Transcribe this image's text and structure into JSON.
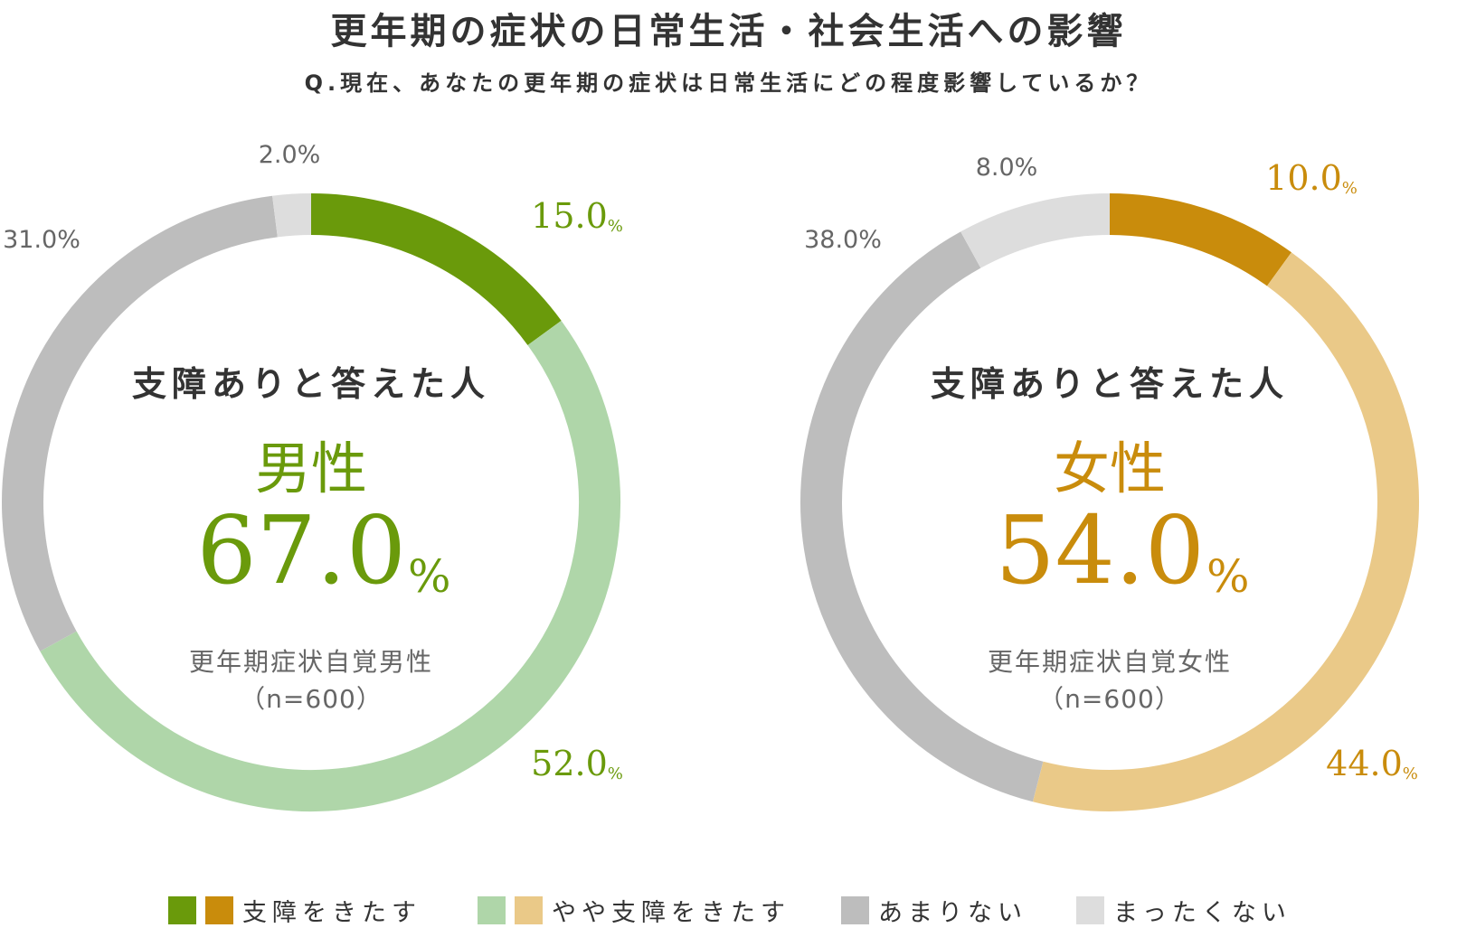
{
  "title": "更年期の症状の日常生活・社会生活への影響",
  "question": "Q.現在、あなたの更年期の症状は日常生活にどの程度影響しているか？",
  "colors": {
    "male_dark": "#6a9a0b",
    "male_light": "#afd6a9",
    "female_dark": "#c98c0c",
    "female_light": "#eac988",
    "gray": "#bdbdbd",
    "light_gray": "#dddddd",
    "text_gray": "#666666",
    "text_dark": "#333333"
  },
  "legend": [
    {
      "label": "支障をきたす",
      "colors": [
        "#6a9a0b",
        "#c98c0c"
      ]
    },
    {
      "label": "やや支障をきたす",
      "colors": [
        "#afd6a9",
        "#eac988"
      ]
    },
    {
      "label": "あまりない",
      "colors": [
        "#bdbdbd"
      ]
    },
    {
      "label": "まったくない",
      "colors": [
        "#dddddd"
      ]
    }
  ],
  "chart_data": [
    {
      "type": "pie",
      "style": "donut",
      "categories": [
        "支障をきたす",
        "やや支障をきたす",
        "あまりない",
        "まったくない"
      ],
      "values": [
        15.0,
        52.0,
        31.0,
        2.0
      ],
      "value_labels": [
        "15.0",
        "52.0",
        "31.0%",
        "2.0%"
      ],
      "label_suffix": [
        "%",
        "%",
        "",
        ""
      ],
      "colors": [
        "#6a9a0b",
        "#afd6a9",
        "#bdbdbd",
        "#dddddd"
      ],
      "center_heading": "支障ありと答えた人",
      "center_group": "男性",
      "center_value": "67.0",
      "center_unit": "%",
      "center_sub1": "更年期症状自覚男性",
      "center_sub2": "（n=600）",
      "accent": "#6a9a0b"
    },
    {
      "type": "pie",
      "style": "donut",
      "categories": [
        "支障をきたす",
        "やや支障をきたす",
        "あまりない",
        "まったくない"
      ],
      "values": [
        10.0,
        44.0,
        38.0,
        8.0
      ],
      "value_labels": [
        "10.0",
        "44.0",
        "38.0%",
        "8.0%"
      ],
      "label_suffix": [
        "%",
        "%",
        "",
        ""
      ],
      "colors": [
        "#c98c0c",
        "#eac988",
        "#bdbdbd",
        "#dddddd"
      ],
      "center_heading": "支障ありと答えた人",
      "center_group": "女性",
      "center_value": "54.0",
      "center_unit": "%",
      "center_sub1": "更年期症状自覚女性",
      "center_sub2": "（n=600）",
      "accent": "#c98c0c"
    }
  ]
}
